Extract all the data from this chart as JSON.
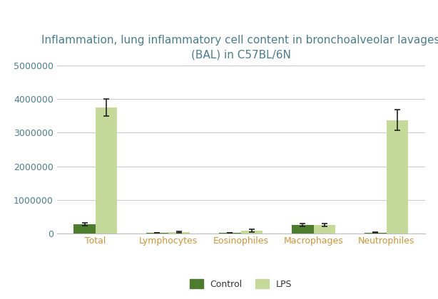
{
  "title": "Inflammation, lung inflammatory cell content in bronchoalveolar lavages\n(BAL) in C57BL/6N",
  "categories": [
    "Total",
    "Lymphocytes",
    "Eosinophiles",
    "Macrophages",
    "Neutrophiles"
  ],
  "control_values": [
    270000,
    10000,
    15000,
    250000,
    20000
  ],
  "lps_values": [
    3750000,
    40000,
    80000,
    250000,
    3380000
  ],
  "control_errors": [
    40000,
    5000,
    8000,
    40000,
    10000
  ],
  "lps_errors": [
    250000,
    20000,
    40000,
    40000,
    300000
  ],
  "control_color": "#4d7c2e",
  "lps_color": "#c5d99a",
  "bar_width": 0.3,
  "ylim": [
    0,
    5000000
  ],
  "yticks": [
    0,
    1000000,
    2000000,
    3000000,
    4000000,
    5000000
  ],
  "title_color": "#4d7c8a",
  "xticklabel_color": "#c8963c",
  "ytick_color": "#4d7c8a",
  "background_color": "#ffffff",
  "grid_color": "#cccccc",
  "legend_labels": [
    "Control",
    "LPS"
  ],
  "title_fontsize": 11,
  "tick_fontsize": 9,
  "legend_fontsize": 9
}
